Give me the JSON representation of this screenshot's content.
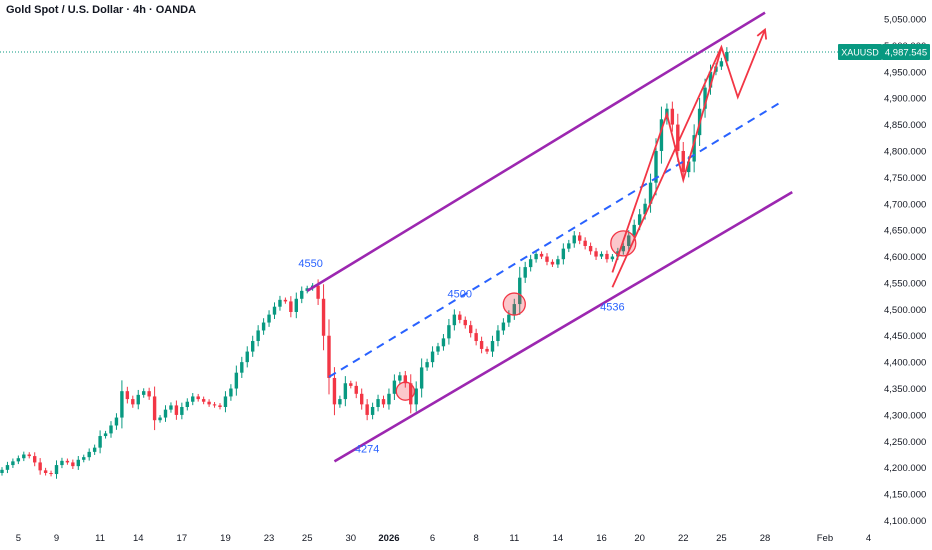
{
  "title": "Gold Spot / U.S. Dollar · 4h · OANDA",
  "price_badge": {
    "symbol": "XAUUSD",
    "price": "4,987.545",
    "color": "#089981"
  },
  "colors": {
    "up": "#089981",
    "down": "#f23645",
    "channel": "#9c27b0",
    "midline": "#2962ff",
    "projection": "#f23645"
  },
  "chart_data": {
    "type": "candlestick",
    "symbol": "XAUUSD",
    "timeframe": "4h",
    "y_ticks": [
      "5,050.000",
      "5,000.000",
      "4,950.000",
      "4,900.000",
      "4,850.000",
      "4,800.000",
      "4,750.000",
      "4,700.000",
      "4,650.000",
      "4,600.000",
      "4,550.000",
      "4,500.000",
      "4,450.000",
      "4,400.000",
      "4,350.000",
      "4,300.000",
      "4,250.000",
      "4,200.000",
      "4,150.000",
      "4,100.000"
    ],
    "x_ticks": [
      {
        "label": "5",
        "i": 3
      },
      {
        "label": "9",
        "i": 10
      },
      {
        "label": "11",
        "i": 18
      },
      {
        "label": "14",
        "i": 25
      },
      {
        "label": "17",
        "i": 33
      },
      {
        "label": "19",
        "i": 41
      },
      {
        "label": "23",
        "i": 49
      },
      {
        "label": "25",
        "i": 56
      },
      {
        "label": "30",
        "i": 64
      },
      {
        "label": "2026",
        "i": 71,
        "bold": true
      },
      {
        "label": "6",
        "i": 79
      },
      {
        "label": "8",
        "i": 87
      },
      {
        "label": "11",
        "i": 94
      },
      {
        "label": "14",
        "i": 102
      },
      {
        "label": "16",
        "i": 110
      },
      {
        "label": "20",
        "i": 117
      },
      {
        "label": "22",
        "i": 125
      },
      {
        "label": "25",
        "i": 132
      },
      {
        "label": "28",
        "i": 140
      },
      {
        "label": "Feb",
        "i": 151
      },
      {
        "label": "4",
        "i": 159
      }
    ],
    "ylim": [
      4085,
      5070
    ],
    "current_price": 4987.545,
    "close": [
      4196,
      4205,
      4212,
      4218,
      4225,
      4222,
      4210,
      4195,
      4190,
      4188,
      4205,
      4213,
      4210,
      4203,
      4215,
      4220,
      4230,
      4238,
      4260,
      4265,
      4280,
      4295,
      4345,
      4330,
      4320,
      4338,
      4345,
      4335,
      4290,
      4295,
      4310,
      4318,
      4300,
      4315,
      4325,
      4335,
      4330,
      4325,
      4320,
      4318,
      4315,
      4335,
      4350,
      4380,
      4400,
      4420,
      4440,
      4460,
      4475,
      4490,
      4505,
      4518,
      4515,
      4495,
      4520,
      4535,
      4540,
      4545,
      4520,
      4450,
      4370,
      4320,
      4330,
      4360,
      4355,
      4340,
      4320,
      4300,
      4315,
      4330,
      4320,
      4340,
      4365,
      4375,
      4360,
      4320,
      4350,
      4390,
      4400,
      4420,
      4430,
      4445,
      4470,
      4490,
      4480,
      4470,
      4455,
      4440,
      4425,
      4420,
      4440,
      4460,
      4475,
      4490,
      4510,
      4560,
      4580,
      4595,
      4605,
      4600,
      4590,
      4585,
      4595,
      4615,
      4625,
      4640,
      4630,
      4620,
      4610,
      4600,
      4605,
      4595,
      4600,
      4610,
      4620,
      4640,
      4660,
      4680,
      4700,
      4740,
      4800,
      4860,
      4880,
      4850,
      4800,
      4760,
      4780,
      4830,
      4880,
      4920,
      4950,
      4960,
      4970,
      4987.545
    ],
    "annotations": [
      {
        "label": "4550",
        "i": 57,
        "price": 4550
      },
      {
        "label": "4274",
        "i": 67,
        "price": 4274
      },
      {
        "label": "4500",
        "i": 84,
        "price": 4500
      },
      {
        "label": "4536",
        "i": 112,
        "price": 4536
      }
    ],
    "channel_upper": [
      {
        "i": 56,
        "p": 4535
      },
      {
        "i": 140,
        "p": 5062
      }
    ],
    "channel_lower": [
      {
        "i": 61,
        "p": 4212
      },
      {
        "i": 145,
        "p": 4722
      }
    ],
    "channel_mid": [
      {
        "i": 60,
        "p": 4372
      },
      {
        "i": 143,
        "p": 4893
      }
    ],
    "projection": [
      {
        "i": 112,
        "p": 4542
      },
      {
        "i": 132,
        "p": 4997
      },
      {
        "i": 135,
        "p": 4902
      },
      {
        "i": 140,
        "p": 5030
      }
    ],
    "zigzag": [
      {
        "i": 112,
        "p": 4570
      },
      {
        "i": 122,
        "p": 4870
      },
      {
        "i": 125,
        "p": 4745
      },
      {
        "i": 132,
        "p": 4995
      }
    ],
    "circles": [
      {
        "i": 74,
        "p": 4345
      },
      {
        "i": 94,
        "p": 4510
      },
      {
        "i": 114,
        "p": 4625
      }
    ]
  }
}
